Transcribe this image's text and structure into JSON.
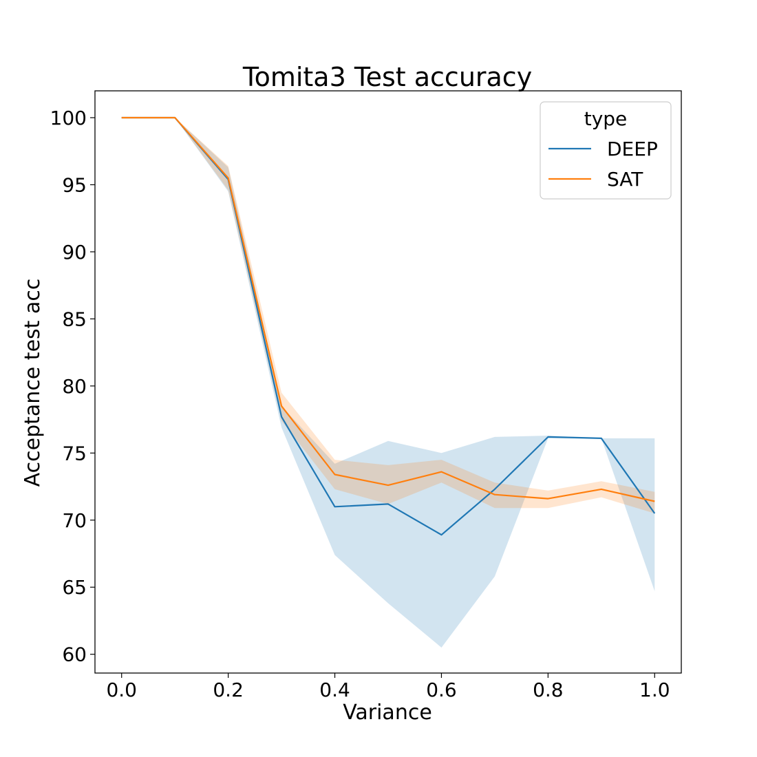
{
  "chart_data": {
    "type": "line",
    "title": "Tomita3 Test accuracy",
    "xlabel": "Variance",
    "ylabel": "Acceptance test acc",
    "xlim": [
      -0.05,
      1.05
    ],
    "ylim": [
      58.6,
      102.0
    ],
    "xticks": [
      0.0,
      0.2,
      0.4,
      0.6,
      0.8,
      1.0
    ],
    "xtick_labels": [
      "0.0",
      "0.2",
      "0.4",
      "0.6",
      "0.8",
      "1.0"
    ],
    "yticks": [
      60,
      65,
      70,
      75,
      80,
      85,
      90,
      95,
      100
    ],
    "ytick_labels": [
      "60",
      "65",
      "70",
      "75",
      "80",
      "85",
      "90",
      "95",
      "100"
    ],
    "grid": false,
    "legend": {
      "title": "type",
      "placement": "top-right"
    },
    "x": [
      0.0,
      0.1,
      0.2,
      0.3,
      0.4,
      0.5,
      0.6,
      0.7,
      0.8,
      0.9,
      1.0
    ],
    "series": [
      {
        "name": "DEEP",
        "color": "#1f77b4",
        "values": [
          100,
          100,
          95.4,
          77.7,
          71.0,
          71.2,
          68.9,
          72.3,
          76.2,
          76.1,
          70.5
        ],
        "lower": [
          100,
          100,
          94.5,
          76.9,
          67.4,
          63.8,
          60.5,
          65.8,
          76.1,
          76.1,
          64.7
        ],
        "upper": [
          100,
          100,
          96.3,
          78.5,
          74.2,
          75.9,
          75.0,
          76.2,
          76.3,
          76.1,
          76.1
        ]
      },
      {
        "name": "SAT",
        "color": "#ff7f0e",
        "values": [
          100,
          100,
          95.5,
          78.5,
          73.4,
          72.6,
          73.6,
          71.9,
          71.6,
          72.3,
          71.4
        ],
        "lower": [
          100,
          100,
          94.6,
          77.4,
          72.3,
          71.2,
          72.8,
          70.9,
          70.9,
          71.7,
          70.5
        ],
        "upper": [
          100,
          100,
          96.4,
          79.5,
          74.5,
          74.1,
          74.5,
          72.8,
          72.2,
          72.9,
          72.1
        ]
      }
    ]
  }
}
